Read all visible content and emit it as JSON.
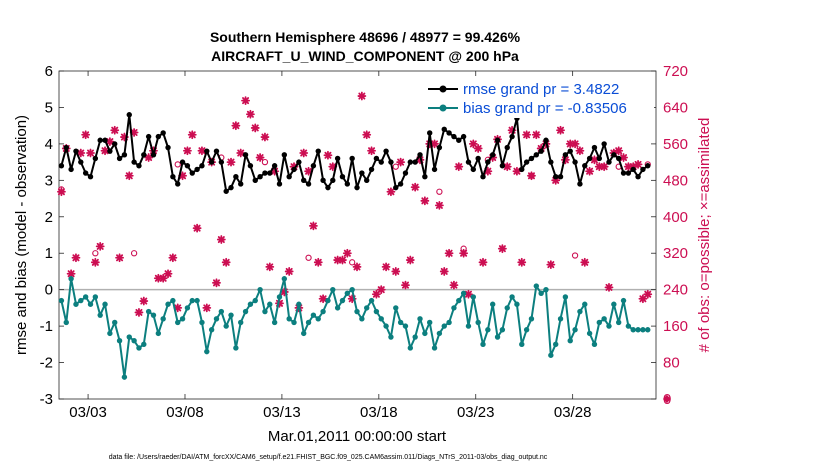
{
  "chart_data": {
    "type": "line",
    "title": "Southern Hemisphere 48696 / 48977 = 99.426%",
    "subtitle": "AIRCRAFT_U_WIND_COMPONENT @ 200 hPa",
    "xlabel": "Mar.01,2011 00:00:00 start",
    "ylabel": "rmse and bias (model - observation)",
    "ylabel_right": "# of obs: o=possible; ×=assimilated",
    "footer": "data file: /Users/raeder/DAI/ATM_forcXX/CAM6_setup/f.e21.FHIST_BGC.f09_025.CAM6assim.011/Diags_NTrS_2011-03/obs_diag_output.nc",
    "xlim": [
      1.5,
      32.3
    ],
    "ylim": [
      -3,
      6
    ],
    "ylim_right": [
      0,
      720
    ],
    "x_tick_labels": [
      "03/03",
      "03/08",
      "03/13",
      "03/18",
      "03/23",
      "03/28"
    ],
    "y_tick_labels": [
      "-3",
      "-2",
      "-1",
      "0",
      "1",
      "2",
      "3",
      "4",
      "5",
      "6"
    ],
    "y_right_tick_labels": [
      "0",
      "80",
      "160",
      "240",
      "320",
      "400",
      "480",
      "560",
      "640",
      "720"
    ],
    "grid": false,
    "legend_position": "top-right",
    "colors": {
      "rmse": "#000000",
      "bias": "#0c7f7f",
      "obs": "#cc0e52",
      "zero_line": "#b0b0b0",
      "legend_text": "#0a4dd6"
    },
    "series": [
      {
        "name": "rmse grand pr = 3.4822",
        "x": [
          1.625,
          1.875,
          2.125,
          2.375,
          2.625,
          2.875,
          3.125,
          3.375,
          3.625,
          3.875,
          4.125,
          4.375,
          4.625,
          4.875,
          5.125,
          5.375,
          5.625,
          5.875,
          6.125,
          6.375,
          6.625,
          6.875,
          7.125,
          7.375,
          7.625,
          7.875,
          8.125,
          8.375,
          8.625,
          8.875,
          9.125,
          9.375,
          9.625,
          9.875,
          10.125,
          10.375,
          10.625,
          10.875,
          11.125,
          11.375,
          11.625,
          11.875,
          12.125,
          12.375,
          12.625,
          12.875,
          13.125,
          13.375,
          13.625,
          13.875,
          14.125,
          14.375,
          14.625,
          14.875,
          15.125,
          15.375,
          15.625,
          15.875,
          16.125,
          16.375,
          16.625,
          16.875,
          17.125,
          17.375,
          17.625,
          17.875,
          18.125,
          18.375,
          18.625,
          18.875,
          19.125,
          19.375,
          19.625,
          19.875,
          20.125,
          20.375,
          20.625,
          20.875,
          21.125,
          21.375,
          21.625,
          21.875,
          22.125,
          22.375,
          22.625,
          22.875,
          23.125,
          23.375,
          23.625,
          23.875,
          24.125,
          24.375,
          24.625,
          24.875,
          25.125,
          25.375,
          25.625,
          25.875,
          26.125,
          26.375,
          26.625,
          26.875,
          27.125,
          27.375,
          27.625,
          27.875,
          28.125,
          28.375,
          28.625,
          28.875,
          29.125,
          29.375,
          29.625,
          29.875,
          30.125,
          30.375,
          30.625,
          30.875,
          31.125,
          31.375,
          31.625,
          31.875
        ],
        "y": [
          3.4,
          3.9,
          3.3,
          3.8,
          3.5,
          3.2,
          3.1,
          3.6,
          4.1,
          4.1,
          3.8,
          4.0,
          3.6,
          3.7,
          4.8,
          3.5,
          3.4,
          3.7,
          4.2,
          3.7,
          4.2,
          4.3,
          3.9,
          3.1,
          2.9,
          3.5,
          3.4,
          3.2,
          3.3,
          3.4,
          3.8,
          3.5,
          3.8,
          3.5,
          2.7,
          2.8,
          3.1,
          2.9,
          3.7,
          3.4,
          3.0,
          3.1,
          3.2,
          3.2,
          3.4,
          2.9,
          3.7,
          3.1,
          3.3,
          3.5,
          3.0,
          2.9,
          3.4,
          3.8,
          3.0,
          2.8,
          3.0,
          3.6,
          3.1,
          2.9,
          3.6,
          2.8,
          3.2,
          3.0,
          3.3,
          3.6,
          3.5,
          3.8,
          3.5,
          2.8,
          2.9,
          3.2,
          3.5,
          3.5,
          3.7,
          3.1,
          4.3,
          3.3,
          3.9,
          4.4,
          4.3,
          4.2,
          4.1,
          4.2,
          3.5,
          3.3,
          3.6,
          3.1,
          3.5,
          3.7,
          4.1,
          3.4,
          3.9,
          4.2,
          4.7,
          3.3,
          3.5,
          3.6,
          3.7,
          3.8,
          4.1,
          3.5,
          3.1,
          3.1,
          3.7,
          3.8,
          3.5,
          2.9,
          3.4,
          3.6,
          3.9,
          3.6,
          4.0,
          3.5,
          3.7,
          3.6,
          3.2,
          3.2,
          3.3,
          3.1,
          3.3,
          3.4
        ],
        "display": "line"
      },
      {
        "name": "bias grand pr = -0.83506",
        "x": [
          1.625,
          1.875,
          2.125,
          2.375,
          2.625,
          2.875,
          3.125,
          3.375,
          3.625,
          3.875,
          4.125,
          4.375,
          4.625,
          4.875,
          5.125,
          5.375,
          5.625,
          5.875,
          6.125,
          6.375,
          6.625,
          6.875,
          7.125,
          7.375,
          7.625,
          7.875,
          8.125,
          8.375,
          8.625,
          8.875,
          9.125,
          9.375,
          9.625,
          9.875,
          10.125,
          10.375,
          10.625,
          10.875,
          11.125,
          11.375,
          11.625,
          11.875,
          12.125,
          12.375,
          12.625,
          12.875,
          13.125,
          13.375,
          13.625,
          13.875,
          14.125,
          14.375,
          14.625,
          14.875,
          15.125,
          15.375,
          15.625,
          15.875,
          16.125,
          16.375,
          16.625,
          16.875,
          17.125,
          17.375,
          17.625,
          17.875,
          18.125,
          18.375,
          18.625,
          18.875,
          19.125,
          19.375,
          19.625,
          19.875,
          20.125,
          20.375,
          20.625,
          20.875,
          21.125,
          21.375,
          21.625,
          21.875,
          22.125,
          22.375,
          22.625,
          22.875,
          23.125,
          23.375,
          23.625,
          23.875,
          24.125,
          24.375,
          24.625,
          24.875,
          25.125,
          25.375,
          25.625,
          25.875,
          26.125,
          26.375,
          26.625,
          26.875,
          27.125,
          27.375,
          27.625,
          27.875,
          28.125,
          28.375,
          28.625,
          28.875,
          29.125,
          29.375,
          29.625,
          29.875,
          30.125,
          30.375,
          30.625,
          30.875,
          31.125,
          31.375,
          31.625,
          31.875
        ],
        "y": [
          -0.3,
          -0.9,
          0.3,
          -0.4,
          -0.3,
          -0.2,
          -0.4,
          -0.2,
          -0.7,
          -0.4,
          -1.2,
          -0.9,
          -1.4,
          -2.4,
          -1.3,
          -1.4,
          -1.6,
          -1.5,
          -0.6,
          -0.7,
          -1.2,
          -0.8,
          -0.4,
          -0.3,
          -0.9,
          -0.8,
          -0.5,
          -0.3,
          -0.3,
          -0.9,
          -1.7,
          -1.1,
          -0.8,
          -0.6,
          -1.0,
          -0.7,
          -1.6,
          -0.9,
          -0.6,
          -0.4,
          -0.3,
          0.0,
          -0.6,
          -0.4,
          -0.9,
          -0.2,
          0.3,
          -0.8,
          -0.9,
          -0.4,
          -1.2,
          -0.9,
          -0.7,
          -0.8,
          -0.6,
          -0.3,
          0.0,
          -0.5,
          -0.3,
          -0.1,
          0.0,
          -0.6,
          -0.8,
          -0.5,
          -0.3,
          -0.6,
          -0.8,
          -1.0,
          -1.3,
          -0.5,
          -0.9,
          -1.0,
          -1.6,
          -1.3,
          -0.8,
          -1.2,
          -0.9,
          -1.6,
          -1.2,
          -1.0,
          -0.9,
          -0.5,
          -0.3,
          -0.1,
          -1.0,
          -0.2,
          -0.9,
          -1.5,
          -1.1,
          -0.4,
          -1.3,
          -1.1,
          -0.5,
          -0.2,
          -0.4,
          -1.5,
          -1.1,
          -0.8,
          0.1,
          -0.1,
          0.0,
          -1.8,
          -1.5,
          -0.8,
          -0.2,
          -1.4,
          -1.1,
          -0.6,
          -0.4,
          -1.2,
          -1.5,
          -0.9,
          -0.8,
          -1.0,
          -0.4,
          -0.9,
          -0.3,
          -1.0,
          -1.1,
          -1.1,
          -1.1,
          -1.1
        ],
        "display": "line"
      }
    ],
    "obs_assimilated": {
      "x": [
        1.625,
        1.875,
        2.125,
        2.375,
        2.625,
        2.875,
        3.125,
        3.375,
        3.625,
        3.875,
        4.125,
        4.375,
        4.625,
        4.875,
        5.125,
        5.375,
        5.625,
        5.875,
        6.125,
        6.375,
        6.625,
        6.875,
        7.125,
        7.375,
        7.625,
        7.875,
        8.125,
        8.375,
        8.625,
        8.875,
        9.125,
        9.375,
        9.625,
        9.875,
        10.125,
        10.375,
        10.625,
        10.875,
        11.125,
        11.375,
        11.625,
        11.875,
        12.125,
        12.375,
        12.625,
        12.875,
        13.125,
        13.375,
        13.625,
        13.875,
        14.125,
        14.375,
        14.625,
        14.875,
        15.125,
        15.375,
        15.625,
        15.875,
        16.125,
        16.375,
        16.625,
        16.875,
        17.125,
        17.375,
        17.625,
        17.875,
        18.125,
        18.375,
        18.625,
        18.875,
        19.125,
        19.375,
        19.625,
        19.875,
        20.125,
        20.375,
        20.625,
        20.875,
        21.125,
        21.375,
        21.625,
        21.875,
        22.125,
        22.375,
        22.625,
        22.875,
        23.125,
        23.375,
        23.625,
        23.875,
        24.125,
        24.375,
        24.625,
        24.875,
        25.125,
        25.375,
        25.625,
        25.875,
        26.125,
        26.375,
        26.625,
        26.875,
        27.125,
        27.375,
        27.625,
        27.875,
        28.125,
        28.375,
        28.625,
        28.875,
        29.125,
        29.375,
        29.625,
        29.875,
        30.125,
        30.375,
        30.625,
        30.875,
        31.125,
        31.375,
        31.625,
        31.875
      ],
      "y": [
        455,
        550,
        275,
        310,
        540,
        580,
        540,
        300,
        335,
        545,
        565,
        590,
        310,
        575,
        490,
        585,
        190,
        215,
        530,
        545,
        265,
        265,
        275,
        310,
        200,
        490,
        545,
        580,
        375,
        545,
        200,
        520,
        255,
        350,
        300,
        520,
        600,
        540,
        655,
        625,
        595,
        530,
        575,
        290,
        500,
        210,
        235,
        280,
        510,
        200,
        540,
        500,
        380,
        300,
        220,
        535,
        510,
        305,
        305,
        320,
        220,
        290,
        665,
        580,
        545,
        230,
        240,
        290,
        455,
        280,
        520,
        250,
        305,
        465,
        525,
        435,
        560,
        560,
        425,
        280,
        320,
        250,
        510,
        320,
        230,
        560,
        550,
        300,
        500,
        530,
        570,
        330,
        510,
        590,
        500,
        300,
        580,
        490,
        580,
        550,
        560,
        295,
        480,
        590,
        525,
        560,
        560,
        545,
        300,
        500,
        525,
        510,
        510,
        245,
        540,
        545,
        530,
        510,
        510,
        515,
        220,
        230
      ]
    },
    "obs_possible": {
      "x": [
        1.625,
        3.375,
        5.375,
        7.625,
        9.875,
        12.125,
        14.375,
        16.625,
        18.875,
        21.125,
        22.375,
        23.625,
        25.875,
        28.125,
        30.375,
        31.875
      ],
      "y": [
        460,
        320,
        320,
        515,
        530,
        520,
        310,
        300,
        510,
        455,
        330,
        525,
        490,
        315,
        510,
        515
      ]
    },
    "obs_zero_marker": {
      "x": 31.625,
      "y": 0
    }
  }
}
